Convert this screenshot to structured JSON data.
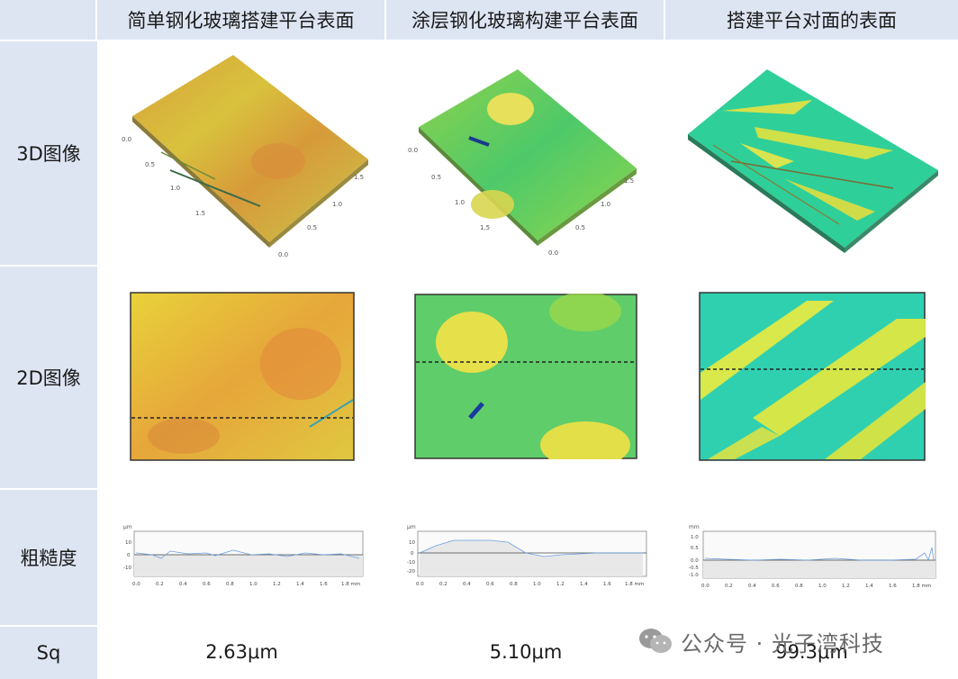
{
  "headers": {
    "col1": "简单钢化玻璃搭建平台表面",
    "col2": "涂层钢化玻璃构建平台表面",
    "col3": "搭建平台对面的表面"
  },
  "rows": {
    "r3d": "3D图像",
    "r2d": "2D图像",
    "rough": "粗糙度",
    "sq": "Sq"
  },
  "sq_values": [
    "2.63μm",
    "5.10μm",
    "99.3μm"
  ],
  "axis_ticks_3d": [
    "0.0",
    "0.5",
    "1.0",
    "1.5",
    "0.0",
    "0.5",
    "1.0",
    "1.5"
  ],
  "profiles": [
    {
      "unit": "μm",
      "yticks": [
        "10",
        "0",
        "-10"
      ],
      "xticks": [
        "0.0",
        "0.2",
        "0.4",
        "0.6",
        "0.8",
        "1.0",
        "1.2",
        "1.4",
        "1.6",
        "1.8 mm"
      ]
    },
    {
      "unit": "μm",
      "yticks": [
        "10",
        "0",
        "-10",
        "-20"
      ],
      "xticks": [
        "0.0",
        "0.2",
        "0.4",
        "0.6",
        "0.8",
        "1.0",
        "1.2",
        "1.4",
        "1.6",
        "1.8 mm"
      ]
    },
    {
      "unit": "mm",
      "yticks": [
        "1.0",
        "0.5",
        "0.0",
        "-0.5",
        "-1.0"
      ],
      "xticks": [
        "0.0",
        "0.2",
        "0.4",
        "0.6",
        "0.8",
        "1.0",
        "1.2",
        "1.4",
        "1.6",
        "1.8 mm"
      ]
    }
  ],
  "watermark": {
    "text": "公众号 · 光子湾科技",
    "icon": "wechat-icon"
  }
}
